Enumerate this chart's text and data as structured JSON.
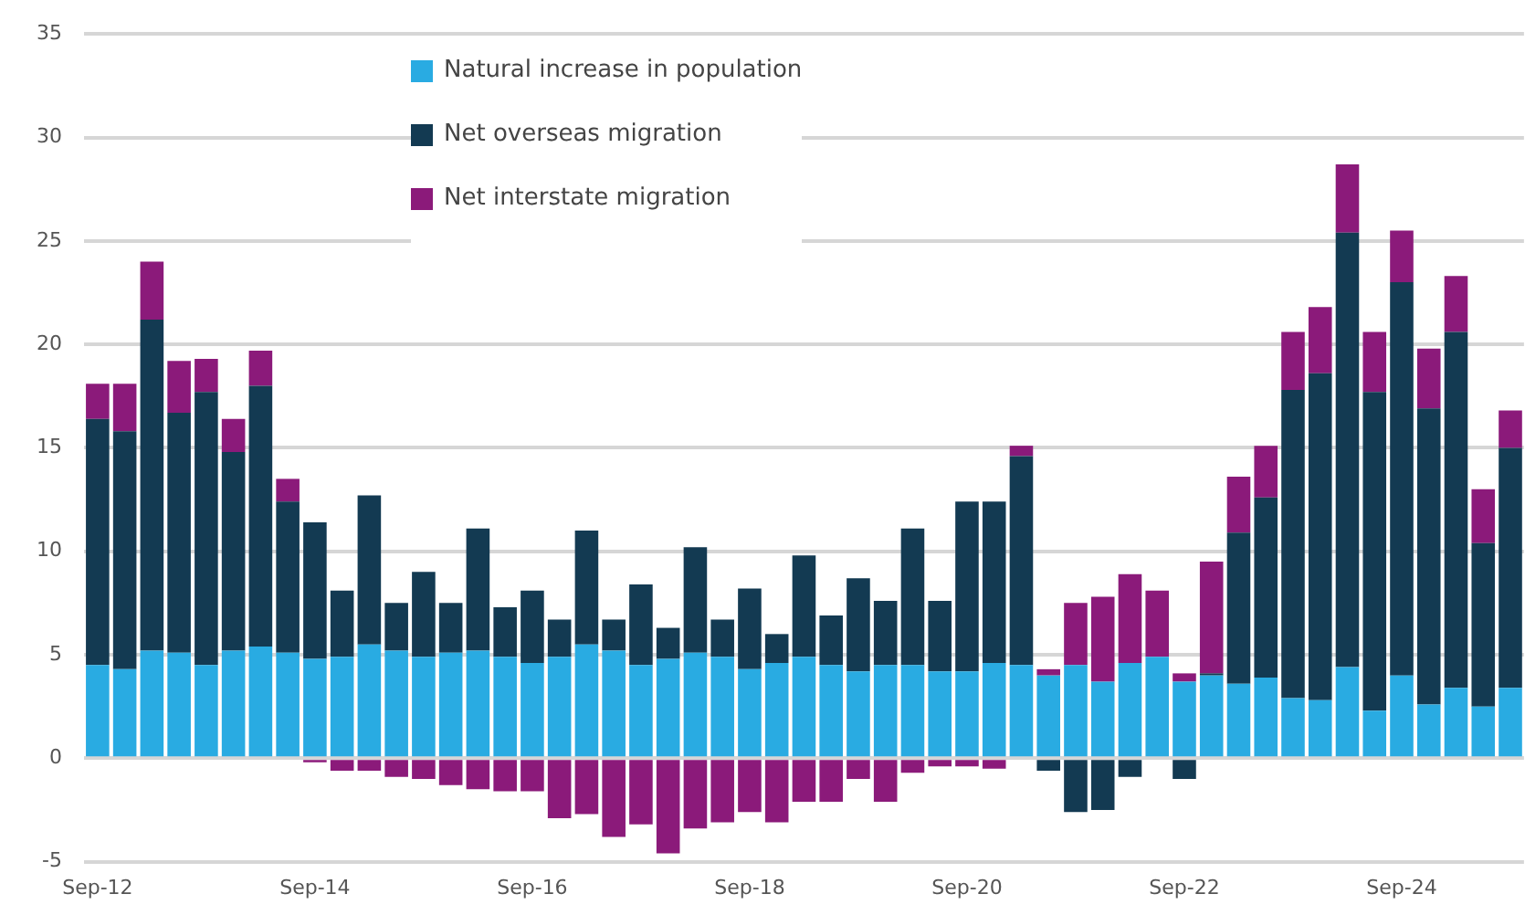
{
  "chart_data": {
    "type": "bar",
    "stacked": true,
    "categories": [
      "Sep-12",
      null,
      null,
      null,
      null,
      null,
      null,
      null,
      "Sep-14",
      null,
      null,
      null,
      null,
      null,
      null,
      null,
      "Sep-16",
      null,
      null,
      null,
      null,
      null,
      null,
      null,
      "Sep-18",
      null,
      null,
      null,
      null,
      null,
      null,
      null,
      "Sep-20",
      null,
      null,
      null,
      null,
      null,
      null,
      null,
      "Sep-22",
      null,
      null,
      null,
      null,
      null,
      null,
      null,
      "Sep-24",
      null,
      null,
      null,
      null
    ],
    "series": [
      {
        "name": "Natural increase in population",
        "color": "#29abe2",
        "values": [
          4.5,
          4.3,
          5.2,
          5.1,
          4.5,
          5.2,
          5.4,
          5.1,
          4.8,
          4.9,
          5.5,
          5.2,
          4.9,
          5.1,
          5.2,
          4.9,
          4.6,
          4.9,
          5.5,
          5.2,
          4.5,
          4.8,
          5.1,
          4.9,
          4.3,
          4.6,
          4.9,
          4.5,
          4.2,
          4.5,
          4.5,
          4.2,
          4.2,
          4.6,
          4.5,
          4.0,
          4.5,
          3.7,
          4.6,
          4.9,
          3.7,
          4.0,
          3.6,
          3.9,
          2.9,
          2.8,
          4.4,
          2.3,
          4.0,
          2.6,
          3.4,
          2.5,
          3.4
        ]
      },
      {
        "name": "Net overseas migration",
        "color": "#133a52",
        "values": [
          11.9,
          11.5,
          16.0,
          11.6,
          13.2,
          9.6,
          12.6,
          7.3,
          6.6,
          3.2,
          7.2,
          2.3,
          4.1,
          2.4,
          5.9,
          2.4,
          3.5,
          1.8,
          5.5,
          1.5,
          3.9,
          1.5,
          5.1,
          1.8,
          3.9,
          1.4,
          4.9,
          2.4,
          4.5,
          3.1,
          6.6,
          3.4,
          8.2,
          7.8,
          10.1,
          -0.6,
          -2.6,
          -2.5,
          -0.9,
          0,
          -1.0,
          0.1,
          7.3,
          8.7,
          14.9,
          15.8,
          21.0,
          15.4,
          19.0,
          14.3,
          17.2,
          7.9,
          11.6
        ]
      },
      {
        "name": "Net interstate migration",
        "color": "#8b1a7a",
        "values": [
          1.7,
          2.3,
          2.8,
          2.5,
          1.6,
          1.6,
          1.7,
          1.1,
          -0.2,
          -0.6,
          -0.6,
          -0.9,
          -1.0,
          -1.3,
          -1.5,
          -1.6,
          -1.6,
          -2.9,
          -2.7,
          -3.8,
          -3.2,
          -4.6,
          -3.4,
          -3.1,
          -2.6,
          -3.1,
          -2.1,
          -2.1,
          -1.0,
          -2.1,
          -0.7,
          -0.4,
          -0.4,
          -0.5,
          0.5,
          0.3,
          3.0,
          4.1,
          4.3,
          3.2,
          0.4,
          5.4,
          2.7,
          2.5,
          2.8,
          3.2,
          3.3,
          2.9,
          2.5,
          2.9,
          2.7,
          2.6,
          1.8
        ]
      }
    ],
    "ylim": [
      -5,
      35
    ],
    "yticks": [
      -5,
      0,
      5,
      10,
      15,
      20,
      25,
      30,
      35
    ],
    "grid": "y",
    "legend": "top"
  }
}
